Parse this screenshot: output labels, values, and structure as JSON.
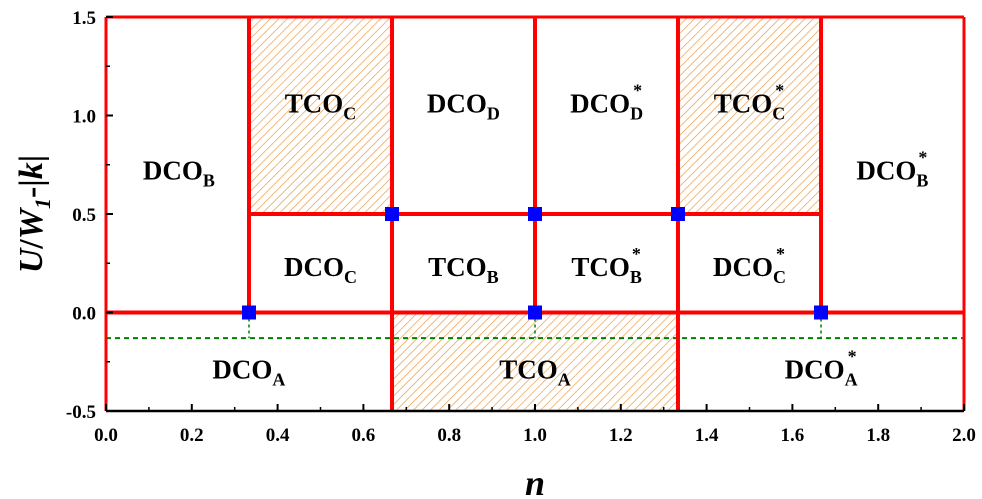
{
  "chart_data": {
    "type": "phase-diagram",
    "xlabel": "n",
    "ylabel": {
      "parts": [
        {
          "t": "U",
          "italic": true
        },
        {
          "t": "/",
          "italic": false
        },
        {
          "t": "W",
          "italic": true
        },
        {
          "t": "1",
          "sub": true
        },
        {
          "t": "-|",
          "italic": false
        },
        {
          "t": "k",
          "italic": true
        },
        {
          "t": "|",
          "italic": false
        }
      ]
    },
    "xlim": [
      0.0,
      2.0
    ],
    "ylim": [
      -0.5,
      1.5
    ],
    "xticks": [
      "0.0",
      "0.2",
      "0.4",
      "0.6",
      "0.8",
      "1.0",
      "1.2",
      "1.4",
      "1.6",
      "1.8",
      "2.0"
    ],
    "yticks": [
      "-0.5",
      "0.0",
      "0.5",
      "1.0",
      "1.5"
    ],
    "colors": {
      "boundary": "#ff0000",
      "hatch": "#e8963c",
      "critical_point": "#0000ff",
      "dashed_line": "#008000"
    },
    "hatched_regions": [
      {
        "x": [
          0.3333,
          0.6667
        ],
        "y": [
          0.5,
          1.5
        ]
      },
      {
        "x": [
          1.3333,
          1.6667
        ],
        "y": [
          0.5,
          1.5
        ]
      },
      {
        "x": [
          0.6667,
          1.3333
        ],
        "y": [
          -0.5,
          0.0
        ]
      }
    ],
    "boundaries": [
      {
        "x": [
          0.3333,
          0.3333
        ],
        "y": [
          0.0,
          1.5
        ]
      },
      {
        "x": [
          0.6667,
          0.6667
        ],
        "y": [
          -0.5,
          1.5
        ]
      },
      {
        "x": [
          1.0,
          1.0
        ],
        "y": [
          0.0,
          1.5
        ]
      },
      {
        "x": [
          1.3333,
          1.3333
        ],
        "y": [
          -0.5,
          1.5
        ]
      },
      {
        "x": [
          1.6667,
          1.6667
        ],
        "y": [
          0.0,
          1.5
        ]
      },
      {
        "x": [
          0.3333,
          1.6667
        ],
        "y": [
          0.5,
          0.5
        ]
      },
      {
        "x": [
          0.0,
          2.0
        ],
        "y": [
          0.0,
          0.0
        ]
      }
    ],
    "dashed_line": {
      "y": -0.13
    },
    "dashed_drops": [
      {
        "x": 0.3333,
        "y": [
          0.0,
          -0.13
        ]
      },
      {
        "x": 0.6667,
        "y": [
          0.0,
          -0.13
        ]
      },
      {
        "x": 1.0,
        "y": [
          0.0,
          -0.13
        ]
      },
      {
        "x": 1.3333,
        "y": [
          0.0,
          -0.13
        ]
      },
      {
        "x": 1.6667,
        "y": [
          0.0,
          -0.13
        ]
      }
    ],
    "critical_points": [
      {
        "x": 0.3333,
        "y": 0.0
      },
      {
        "x": 0.6667,
        "y": 0.5
      },
      {
        "x": 1.0,
        "y": 0.5
      },
      {
        "x": 1.3333,
        "y": 0.5
      },
      {
        "x": 1.0,
        "y": 0.0
      },
      {
        "x": 1.6667,
        "y": 0.0
      }
    ],
    "regions": [
      {
        "base": "DCO",
        "sub": "B",
        "star": false,
        "x": 0.17,
        "y": 0.72
      },
      {
        "base": "TCO",
        "sub": "C",
        "star": false,
        "x": 0.5,
        "y": 1.06
      },
      {
        "base": "DCO",
        "sub": "D",
        "star": false,
        "x": 0.833,
        "y": 1.06
      },
      {
        "base": "DCO",
        "sub": "D",
        "star": true,
        "x": 1.167,
        "y": 1.06
      },
      {
        "base": "TCO",
        "sub": "C",
        "star": true,
        "x": 1.5,
        "y": 1.06
      },
      {
        "base": "DCO",
        "sub": "B",
        "star": true,
        "x": 1.833,
        "y": 0.72
      },
      {
        "base": "DCO",
        "sub": "C",
        "star": false,
        "x": 0.5,
        "y": 0.23
      },
      {
        "base": "TCO",
        "sub": "B",
        "star": false,
        "x": 0.833,
        "y": 0.23
      },
      {
        "base": "TCO",
        "sub": "B",
        "star": true,
        "x": 1.167,
        "y": 0.23
      },
      {
        "base": "DCO",
        "sub": "C",
        "star": true,
        "x": 1.5,
        "y": 0.23
      },
      {
        "base": "DCO",
        "sub": "A",
        "star": false,
        "x": 0.333,
        "y": -0.29
      },
      {
        "base": "TCO",
        "sub": "A",
        "star": false,
        "x": 1.0,
        "y": -0.29
      },
      {
        "base": "DCO",
        "sub": "A",
        "star": true,
        "x": 1.667,
        "y": -0.29
      }
    ]
  }
}
